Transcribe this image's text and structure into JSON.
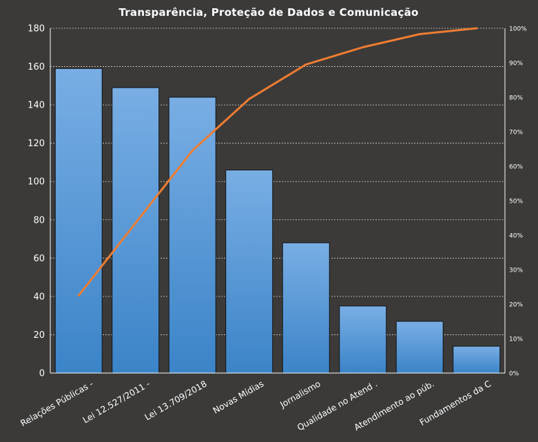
{
  "chart_data": {
    "type": "bar",
    "title": "Transparência,  Proteção de Dados e Comunicação",
    "categories": [
      "Relações Públicas -",
      "Lei 12.527/2011 -",
      "Lei 13.709/2018",
      "Novas Mídias",
      "Jornalismo",
      "Qualidade no Atend .",
      "Atendimento  ao púb.",
      "Fundamentos  da C"
    ],
    "series": [
      {
        "type": "bar",
        "values": [
          159,
          149,
          144,
          106,
          68,
          35,
          27,
          14
        ]
      },
      {
        "type": "line",
        "axis": "right",
        "values": [
          22.5,
          43.5,
          64.5,
          79.5,
          89.5,
          94.5,
          98.3,
          100
        ]
      }
    ],
    "ylim": [
      0,
      180
    ],
    "yticks": [
      "0",
      "20",
      "40",
      "60",
      "80",
      "100",
      "120",
      "140",
      "160",
      "180"
    ],
    "y2lim": [
      0,
      100
    ],
    "y2ticks": [
      "0%",
      "10%",
      "20%",
      "30%",
      "40%",
      "50%",
      "60%",
      "70%",
      "80%",
      "90%",
      "100%"
    ],
    "grid": true,
    "legend": "none",
    "colors": {
      "background": "#3b3a39",
      "bar_top": "#79aee4",
      "bar_bottom": "#3b84c8",
      "bar_stroke": "#111111",
      "line": "#ee7d32",
      "grid": "#d8d8d8",
      "axis": "#ffffff"
    }
  }
}
